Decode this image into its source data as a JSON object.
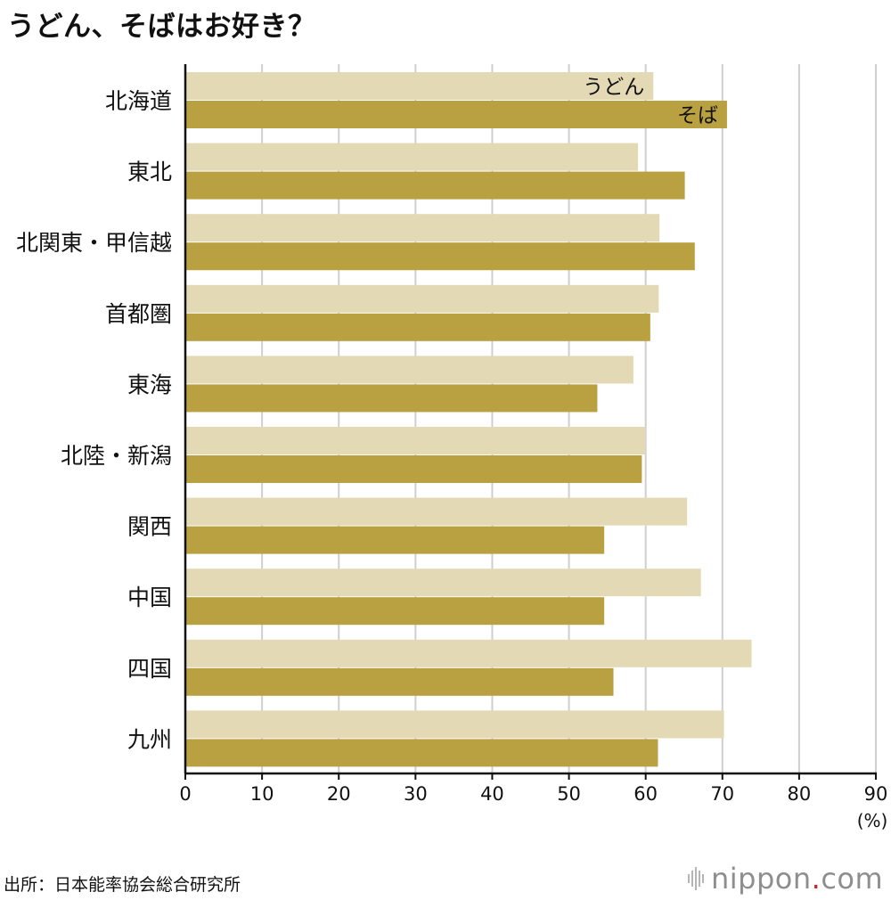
{
  "title": "うどん、そばはお好き？",
  "source": "出所：日本能率協会総合研究所",
  "brand": {
    "name": "nippon",
    "dot": ".",
    "tld": "com"
  },
  "colors": {
    "udon": "#e3d9b4",
    "soba": "#b9a040",
    "grid": "#cfcfcf",
    "axis": "#111111"
  },
  "chart_data": {
    "type": "bar",
    "orientation": "horizontal",
    "categories": [
      "北海道",
      "東北",
      "北関東・甲信越",
      "首都圏",
      "東海",
      "北陸・新潟",
      "関西",
      "中国",
      "四国",
      "九州"
    ],
    "series": [
      {
        "name": "うどん",
        "values": [
          61.0,
          59.0,
          61.8,
          61.7,
          58.4,
          60.0,
          65.4,
          67.2,
          73.8,
          70.2
        ]
      },
      {
        "name": "そば",
        "values": [
          70.6,
          65.1,
          66.4,
          60.6,
          53.7,
          59.5,
          54.6,
          54.6,
          55.8,
          61.6
        ]
      }
    ],
    "xlim": [
      0,
      90
    ],
    "xticks": [
      "0",
      "10",
      "20",
      "30",
      "40",
      "50",
      "60",
      "70",
      "80",
      "90"
    ],
    "xunit": "(%)",
    "grid": true,
    "legend": "inline labels on first category bars"
  }
}
